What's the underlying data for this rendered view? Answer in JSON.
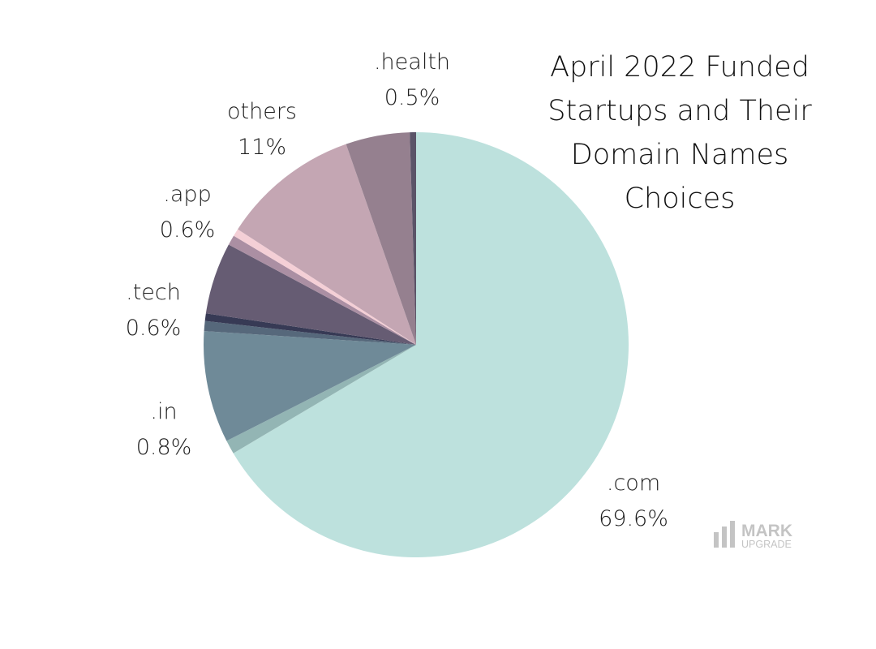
{
  "chart_data": {
    "type": "pie",
    "title_lines": [
      "April 2022 Funded",
      "Startups and Their",
      "Domain Names",
      "Choices"
    ],
    "slices": [
      {
        "label": ".com",
        "value": 69.6,
        "display": "69.6%",
        "color": "#bde1dd",
        "labeled": true
      },
      {
        "label": "",
        "value": 1.1,
        "color": "#93b5b4",
        "labeled": false
      },
      {
        "label": "",
        "value": 8.9,
        "color": "#6f8a98",
        "labeled": false
      },
      {
        "label": ".in",
        "value": 0.8,
        "display": "0.8%",
        "color": "#56687b",
        "labeled": true
      },
      {
        "label": ".tech",
        "value": 0.6,
        "display": "0.6%",
        "color": "#373a55",
        "labeled": true
      },
      {
        "label": "",
        "value": 5.7,
        "color": "#665c73",
        "labeled": false
      },
      {
        "label": "",
        "value": 0.8,
        "color": "#ab8fa3",
        "labeled": false
      },
      {
        "label": ".app",
        "value": 0.6,
        "display": "0.6%",
        "color": "#f4cfd6",
        "labeled": true
      },
      {
        "label": "others",
        "value": 11,
        "display": "11%",
        "color": "#c4a6b3",
        "labeled": true
      },
      {
        "label": "",
        "value": 5.1,
        "color": "#95808f",
        "labeled": false
      },
      {
        "label": ".health",
        "value": 0.5,
        "display": "0.5%",
        "color": "#5b5468",
        "labeled": true
      }
    ]
  },
  "watermark": {
    "line1": "MARK",
    "line2": "UPGRADE",
    "color": "#c4c4c4"
  }
}
